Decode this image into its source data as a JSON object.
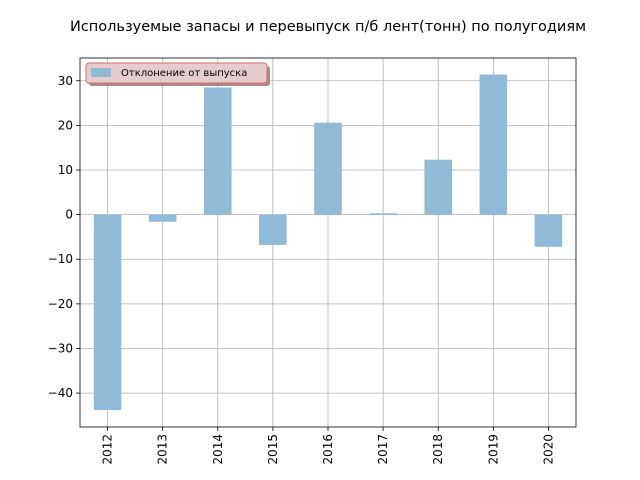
{
  "chart_data": {
    "type": "bar",
    "title": "Используемые запасы и перевыпуск п/б лент(тонн) по полугодиям",
    "categories": [
      "2012",
      "2013",
      "2014",
      "2015",
      "2016",
      "2017",
      "2018",
      "2019",
      "2020"
    ],
    "series": [
      {
        "name": "Отклонение от выпуска",
        "values": [
          -43.8,
          -1.6,
          28.5,
          -6.8,
          20.6,
          0.3,
          12.3,
          31.4,
          -7.2
        ],
        "color": "#8fbbd9"
      }
    ],
    "xlabel": "",
    "ylabel": "",
    "ylim": [
      -47.6,
      35.1
    ],
    "yticks": [
      -40,
      -30,
      -20,
      -10,
      0,
      10,
      20,
      30
    ],
    "ytick_labels": [
      "−40",
      "−30",
      "−20",
      "−10",
      "0",
      "10",
      "20",
      "30"
    ],
    "grid": true,
    "legend_position": "top-left",
    "x_tick_rotation": "vertical"
  }
}
